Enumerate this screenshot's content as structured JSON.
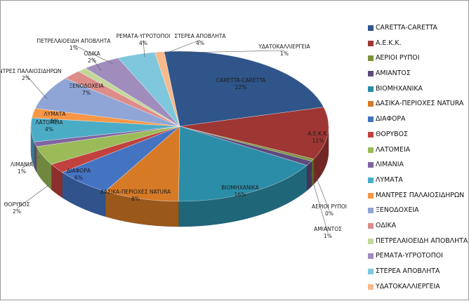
{
  "colors": [
    "#2f558a",
    "#9e3634",
    "#799239",
    "#5e4a7d",
    "#2c8da8",
    "#d67a26",
    "#4473c2",
    "#c0413d",
    "#9bbb59",
    "#8064a2",
    "#4bacc6",
    "#f79646",
    "#8fa5d6",
    "#dd8c8a",
    "#c4d79b",
    "#a08dbd",
    "#7ec7dc",
    "#f8b98b"
  ],
  "chart_data": {
    "type": "pie",
    "categories": [
      "CARETTA-CARETTA",
      "Α.Ε.Κ.Κ.",
      "ΑΕΡΙΟΙ ΡΥΠΟΙ",
      "ΑΜΙΑΝΤΟΣ",
      "ΒΙΟΜΗΧΑΝΙΚΑ",
      "ΔΑΣΙΚΑ-ΠΕΡΙΟΧΕΣ NATURA",
      "ΔΙΑΦΟΡΑ",
      "ΘΟΡΥΒΟΣ",
      "ΛΑΤΟΜΕΙΑ",
      "ΛΙΜΑΝΙΑ",
      "ΛΥΜΑΤΑ",
      "ΜΑΝΤΡΕΣ ΠΑΛΑΙΟΣΙΔΗΡΩΝ",
      "ΞΕΝΟΔΟΧΕΙΑ",
      "ΟΔΙΚΑ",
      "ΠΕΤΡΕΛΑΙΟΕΙΔΗ ΑΠΟΒΛΗΤΑ",
      "ΡΕΜΑΤΑ-ΥΓΡΟΤΟΠΟΙ",
      "ΣΤΕΡΕΑ ΑΠΟΒΛΗΤΑ",
      "ΥΔΑΤΟΚΑΛΛΙΕΡΓΕΙΑ"
    ],
    "values": [
      22,
      11,
      0,
      1,
      16,
      8,
      6,
      2,
      4,
      1,
      5,
      2,
      7,
      2,
      1,
      4,
      4,
      1
    ],
    "value_labels": [
      "22%",
      "11%",
      "0%",
      "1%",
      "16%",
      "8%",
      "6%",
      "2%",
      "4%",
      "1%",
      "5%",
      "2%",
      "7%",
      "2%",
      "1%",
      "4%",
      "4%",
      "1%"
    ],
    "style": "3d-pie",
    "legend_position": "right"
  }
}
